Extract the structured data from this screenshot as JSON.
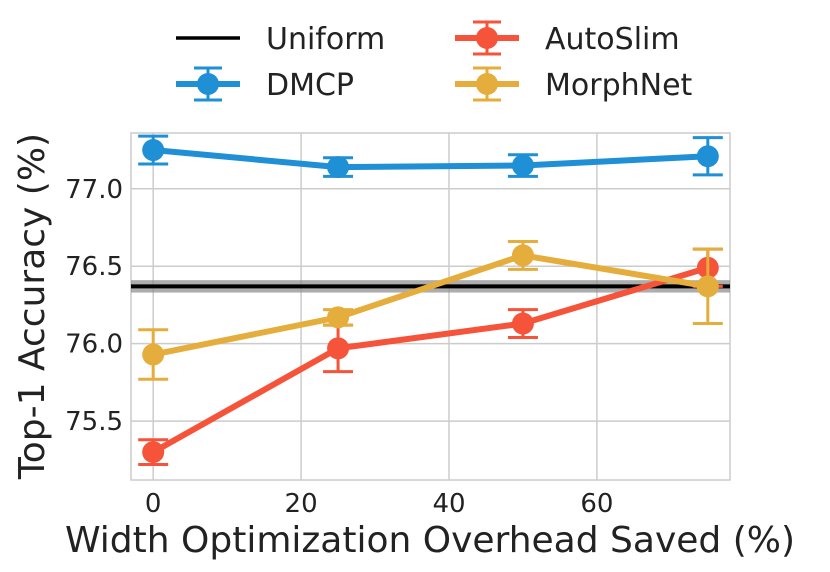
{
  "chart_data": {
    "type": "line",
    "title": "",
    "xlabel": "Width Optimization Overhead Saved (%)",
    "ylabel": "Top-1 Accuracy (%)",
    "xlim": [
      -3,
      78
    ],
    "ylim": [
      75.12,
      77.36
    ],
    "xticks": [
      0,
      20,
      40,
      60
    ],
    "yticks": [
      75.5,
      76.0,
      76.5,
      77.0
    ],
    "ytick_labels": [
      "75.5",
      "76.0",
      "76.5",
      "77.0"
    ],
    "grid": true,
    "legend_position": "top-center",
    "uniform": {
      "name": "Uniform",
      "value": 76.37,
      "band": [
        76.33,
        76.41
      ],
      "color": "#000000"
    },
    "series": [
      {
        "name": "DMCP",
        "color": "#1f8fd6",
        "x": [
          0,
          25,
          50,
          75
        ],
        "values": [
          77.25,
          77.14,
          77.15,
          77.21
        ],
        "errors": [
          0.09,
          0.06,
          0.07,
          0.12
        ]
      },
      {
        "name": "AutoSlim",
        "color": "#f5543a",
        "x": [
          0,
          25,
          50,
          75
        ],
        "values": [
          75.3,
          75.97,
          76.13,
          76.49
        ],
        "errors": [
          0.08,
          0.15,
          0.09,
          0.12
        ]
      },
      {
        "name": "MorphNet",
        "color": "#e5ad3c",
        "x": [
          0,
          25,
          50,
          75
        ],
        "values": [
          75.93,
          76.17,
          76.57,
          76.37
        ],
        "errors": [
          0.16,
          0.05,
          0.09,
          0.24
        ]
      }
    ],
    "legend_order": [
      "Uniform",
      "AutoSlim",
      "DMCP",
      "MorphNet"
    ]
  }
}
